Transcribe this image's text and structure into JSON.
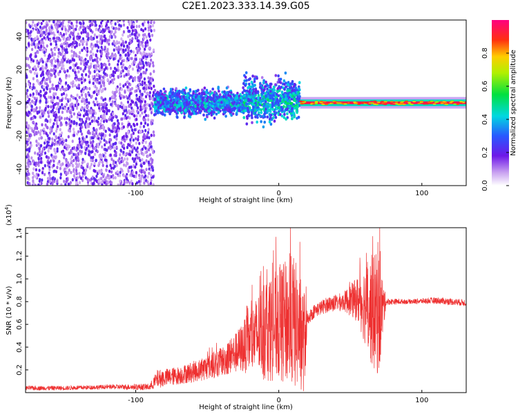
{
  "title": "C2E1.2023.333.14.39.G05",
  "chart_data": [
    {
      "type": "heatmap",
      "title": "C2E1.2023.333.14.39.G05",
      "xlabel": "Height of straight line (km)",
      "ylabel": "Frequency (Hz)",
      "xlim": [
        -177,
        131
      ],
      "ylim": [
        -50,
        50
      ],
      "xticks": [
        -100,
        0,
        100
      ],
      "yticks": [
        -40,
        -20,
        0,
        20,
        40
      ],
      "colorbar": {
        "label": "Normalized spectral amplitude",
        "range": [
          0.0,
          1.0
        ],
        "ticks": [
          0.0,
          0.2,
          0.4,
          0.6,
          0.8
        ]
      },
      "regions": [
        {
          "x_range": [
            -177,
            -87
          ],
          "frequency_spread": [
            -50,
            50
          ],
          "amplitude": 0.15,
          "description": "noise"
        },
        {
          "x_range": [
            -87,
            -25
          ],
          "frequency_spread": [
            -6,
            6
          ],
          "amplitude": 0.35
        },
        {
          "x_range": [
            -25,
            15
          ],
          "frequency_spread": [
            -8,
            12
          ],
          "amplitude": 0.4
        },
        {
          "x_range": [
            15,
            131
          ],
          "frequency_spread": [
            -2,
            2
          ],
          "amplitude": 0.9
        }
      ]
    },
    {
      "type": "line",
      "xlabel": "Height of straight line (km)",
      "ylabel": "SNR (10 * v/v)",
      "y_scale_label": "(x10^4)",
      "xlim": [
        -177,
        131
      ],
      "ylim": [
        0,
        1.45
      ],
      "xticks": [
        -100,
        0,
        100
      ],
      "yticks": [
        0.2,
        0.4,
        0.6,
        0.8,
        1.0,
        1.2,
        1.4
      ],
      "series": [
        {
          "color": "#ee3030",
          "x": [
            -177,
            -150,
            -120,
            -90,
            -85,
            -70,
            -55,
            -40,
            -30,
            -20,
            -10,
            0,
            10,
            18,
            20,
            25,
            35,
            45,
            55,
            60,
            65,
            70,
            75,
            90,
            110,
            131
          ],
          "y": [
            0.04,
            0.04,
            0.05,
            0.05,
            0.12,
            0.15,
            0.2,
            0.27,
            0.35,
            0.45,
            0.55,
            0.6,
            0.63,
            0.45,
            0.65,
            0.72,
            0.78,
            0.8,
            0.82,
            0.78,
            0.72,
            0.68,
            0.8,
            0.8,
            0.81,
            0.79
          ],
          "spread": [
            0.02,
            0.02,
            0.02,
            0.03,
            0.08,
            0.08,
            0.1,
            0.13,
            0.18,
            0.28,
            0.45,
            0.5,
            0.6,
            0.45,
            0.06,
            0.06,
            0.07,
            0.08,
            0.2,
            0.35,
            0.5,
            0.55,
            0.03,
            0.02,
            0.03,
            0.03
          ]
        }
      ]
    }
  ]
}
